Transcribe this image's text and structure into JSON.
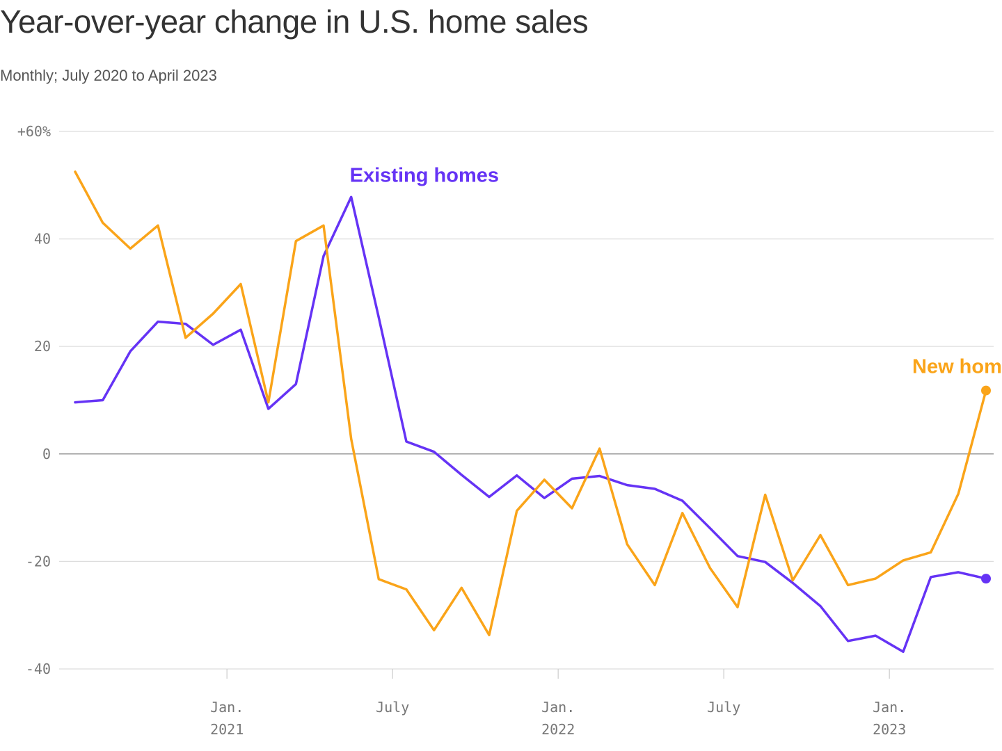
{
  "colors": {
    "existing": "#6533f5",
    "new": "#faa419",
    "grid": "#dddddd",
    "zero": "#999999",
    "tick_text": "#777777"
  },
  "chart_data": {
    "type": "line",
    "title": "Year-over-year change in U.S. home sales",
    "subtitle": "Monthly; July 2020 to April 2023",
    "xlabel": "",
    "ylabel": "",
    "ylim": [
      -40,
      60
    ],
    "y_ticks": [
      {
        "value": 60,
        "label": "+60%"
      },
      {
        "value": 40,
        "label": "40"
      },
      {
        "value": 20,
        "label": "20"
      },
      {
        "value": 0,
        "label": "0"
      },
      {
        "value": -20,
        "label": "-20"
      },
      {
        "value": -40,
        "label": "-40"
      }
    ],
    "x_ticks": [
      {
        "index": 5.5,
        "month": "Jan.",
        "year": "2021"
      },
      {
        "index": 11.5,
        "month": "July",
        "year": ""
      },
      {
        "index": 17.5,
        "month": "Jan.",
        "year": "2022"
      },
      {
        "index": 23.5,
        "month": "July",
        "year": ""
      },
      {
        "index": 29.5,
        "month": "Jan.",
        "year": "2023"
      }
    ],
    "x": [
      "2020-07",
      "2020-08",
      "2020-09",
      "2020-10",
      "2020-11",
      "2020-12",
      "2021-01",
      "2021-02",
      "2021-03",
      "2021-04",
      "2021-05",
      "2021-06",
      "2021-07",
      "2021-08",
      "2021-09",
      "2021-10",
      "2021-11",
      "2021-12",
      "2022-01",
      "2022-02",
      "2022-03",
      "2022-04",
      "2022-05",
      "2022-06",
      "2022-07",
      "2022-08",
      "2022-09",
      "2022-10",
      "2022-11",
      "2022-12",
      "2023-01",
      "2023-02",
      "2023-03",
      "2023-04"
    ],
    "series": [
      {
        "key": "existing",
        "name": "Existing homes",
        "label_anchor_index": 10,
        "values": [
          9.6,
          10,
          19.1,
          24.6,
          24.2,
          20.3,
          23.1,
          8.4,
          13,
          36.8,
          47.8,
          25.4,
          2.3,
          0.4,
          -3.9,
          -8,
          -4,
          -8.2,
          -4.6,
          -4.1,
          -5.8,
          -6.5,
          -8.7,
          -13.8,
          -19,
          -20.1,
          -24,
          -28.3,
          -34.8,
          -33.8,
          -36.8,
          -22.9,
          -22,
          -23.2
        ]
      },
      {
        "key": "new",
        "name": "New homes",
        "label_anchor_index": 33,
        "values": [
          52.5,
          43,
          38.2,
          42.5,
          21.6,
          26.1,
          31.6,
          9.6,
          39.6,
          42.5,
          2.8,
          -23.3,
          -25.2,
          -32.8,
          -24.9,
          -33.7,
          -10.6,
          -4.8,
          -10.1,
          1,
          -16.8,
          -24.4,
          -11,
          -21.2,
          -28.5,
          -7.6,
          -23.5,
          -15.1,
          -24.4,
          -23.2,
          -19.8,
          -18.3,
          -7.4,
          11.8
        ]
      }
    ]
  }
}
